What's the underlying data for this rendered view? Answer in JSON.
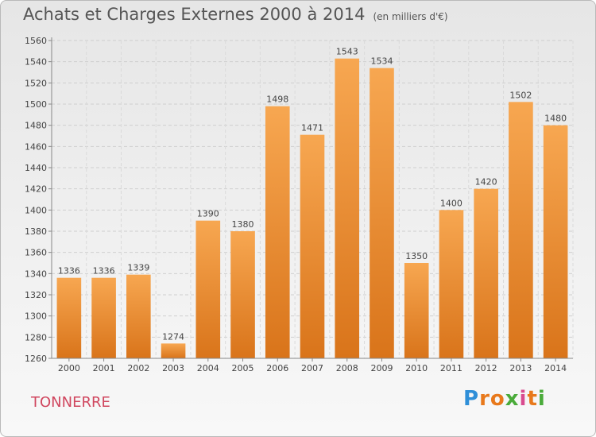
{
  "title": "Achats et Charges Externes 2000 à 2014",
  "subtitle": "(en milliers d'€)",
  "location": "TONNERRE",
  "brand": {
    "letters": [
      "P",
      "r",
      "o",
      "x",
      "i",
      "t",
      "i"
    ],
    "colors": [
      "#2f8fd8",
      "#e8791c",
      "#e8791c",
      "#4aab3a",
      "#d94b8f",
      "#e8791c",
      "#4aab3a"
    ]
  },
  "colors": {
    "bar_light": "#f7a751",
    "bar_dark": "#d9741a",
    "accent": "#d0465e"
  },
  "chart_data": {
    "type": "bar",
    "title": "Achats et Charges Externes 2000 à 2014",
    "subtitle": "(en milliers d'€)",
    "categories": [
      "2000",
      "2001",
      "2002",
      "2003",
      "2004",
      "2005",
      "2006",
      "2007",
      "2008",
      "2009",
      "2010",
      "2011",
      "2012",
      "2013",
      "2014"
    ],
    "values": [
      1336,
      1336,
      1339,
      1274,
      1390,
      1380,
      1498,
      1471,
      1543,
      1534,
      1350,
      1400,
      1420,
      1502,
      1480
    ],
    "ylim": [
      1260,
      1560
    ],
    "yticks": [
      1260,
      1280,
      1300,
      1320,
      1340,
      1360,
      1380,
      1400,
      1420,
      1440,
      1460,
      1480,
      1500,
      1520,
      1540,
      1560
    ],
    "grid": true,
    "data_labels": true
  }
}
